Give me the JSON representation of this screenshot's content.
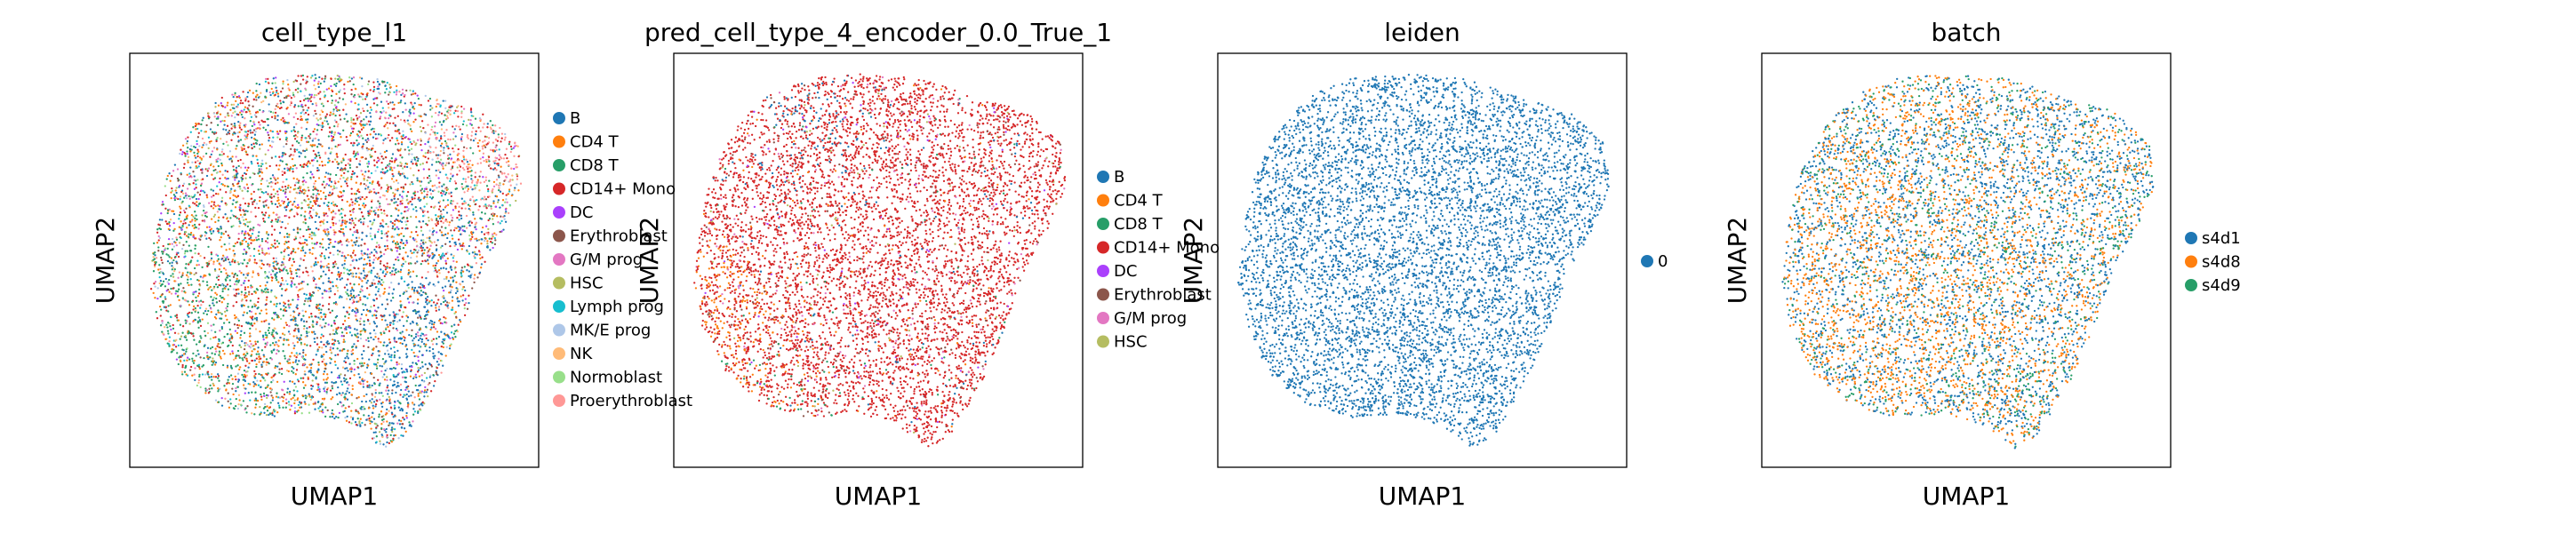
{
  "chart_data": [
    {
      "type": "scatter",
      "title": "cell_type_l1",
      "xlabel": "UMAP1",
      "ylabel": "UMAP2",
      "grid": false,
      "ticks": false,
      "legend_placement": "right",
      "series": [
        {
          "name": "B",
          "color": "#1f77b4"
        },
        {
          "name": "CD4 T",
          "color": "#ff7f0e"
        },
        {
          "name": "CD8 T",
          "color": "#279e68"
        },
        {
          "name": "CD14+ Mono",
          "color": "#d62728"
        },
        {
          "name": "DC",
          "color": "#aa40fc"
        },
        {
          "name": "Erythroblast",
          "color": "#8c564b"
        },
        {
          "name": "G/M prog",
          "color": "#e377c2"
        },
        {
          "name": "HSC",
          "color": "#b5bd61"
        },
        {
          "name": "Lymph prog",
          "color": "#17becf"
        },
        {
          "name": "MK/E prog",
          "color": "#aec7e8"
        },
        {
          "name": "NK",
          "color": "#ffbb78"
        },
        {
          "name": "Normoblast",
          "color": "#98df8a"
        },
        {
          "name": "Proerythroblast",
          "color": "#ff9896"
        }
      ]
    },
    {
      "type": "scatter",
      "title": "pred_cell_type_4_encoder_0.0_True_1",
      "xlabel": "UMAP1",
      "ylabel": "UMAP2",
      "grid": false,
      "ticks": false,
      "legend_placement": "right",
      "series": [
        {
          "name": "B",
          "color": "#1f77b4"
        },
        {
          "name": "CD4 T",
          "color": "#ff7f0e"
        },
        {
          "name": "CD8 T",
          "color": "#279e68"
        },
        {
          "name": "CD14+ Mono",
          "color": "#d62728"
        },
        {
          "name": "DC",
          "color": "#aa40fc"
        },
        {
          "name": "Erythroblast",
          "color": "#8c564b"
        },
        {
          "name": "G/M prog",
          "color": "#e377c2"
        },
        {
          "name": "HSC",
          "color": "#b5bd61"
        }
      ]
    },
    {
      "type": "scatter",
      "title": "leiden",
      "xlabel": "UMAP1",
      "ylabel": "UMAP2",
      "grid": false,
      "ticks": false,
      "legend_placement": "right",
      "series": [
        {
          "name": "0",
          "color": "#1f77b4"
        }
      ]
    },
    {
      "type": "scatter",
      "title": "batch",
      "xlabel": "UMAP1",
      "ylabel": "UMAP2",
      "grid": false,
      "ticks": false,
      "legend_placement": "right",
      "series": [
        {
          "name": "s4d1",
          "color": "#1f77b4"
        },
        {
          "name": "s4d8",
          "color": "#ff7f0e"
        },
        {
          "name": "s4d9",
          "color": "#279e68"
        }
      ]
    }
  ]
}
